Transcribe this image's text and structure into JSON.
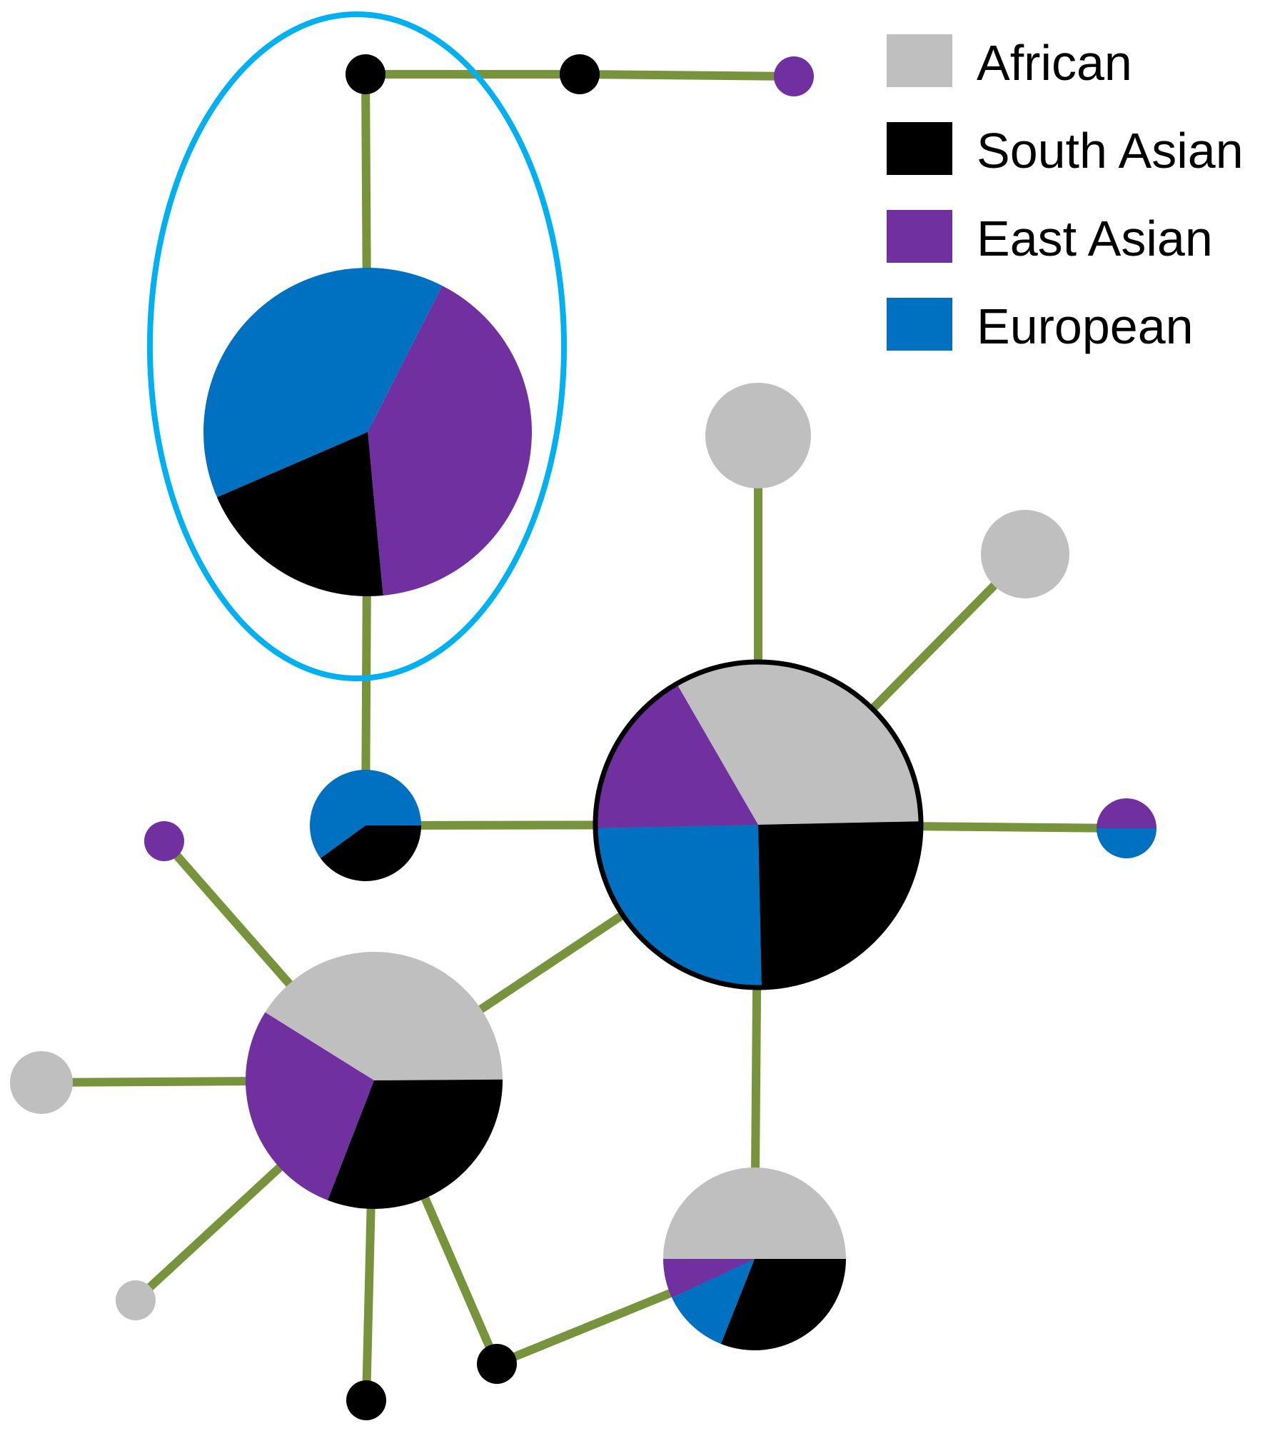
{
  "colors": {
    "African": "#bfbfbf",
    "South Asian": "#000000",
    "East Asian": "#7030a0",
    "European": "#0070c0",
    "edge": "#77933c",
    "highlight_ring": "#00b0f0"
  },
  "legend": [
    {
      "label": "African",
      "color_key": "African"
    },
    {
      "label": "South Asian",
      "color_key": "South Asian"
    },
    {
      "label": "East Asian",
      "color_key": "East Asian"
    },
    {
      "label": "European",
      "color_key": "European"
    }
  ],
  "highlighted_node": "hub_A",
  "nodes": [
    {
      "id": "top_1",
      "composition": {
        "South Asian": 1
      }
    },
    {
      "id": "top_2",
      "composition": {
        "South Asian": 1
      }
    },
    {
      "id": "top_3",
      "composition": {
        "East Asian": 1
      }
    },
    {
      "id": "hub_A",
      "composition": {
        "East Asian": 0.41,
        "South Asian": 0.2,
        "European": 0.39
      }
    },
    {
      "id": "node_B",
      "composition": {
        "European": 0.6,
        "South Asian": 0.4
      }
    },
    {
      "id": "hub_C",
      "composition": {
        "African": 0.33,
        "South Asian": 0.25,
        "European": 0.25,
        "East Asian": 0.17
      },
      "outlined": true
    },
    {
      "id": "leaf_C1",
      "composition": {
        "African": 1
      }
    },
    {
      "id": "leaf_C2",
      "composition": {
        "African": 1
      }
    },
    {
      "id": "leaf_C3",
      "composition": {
        "East Asian": 0.5,
        "European": 0.5
      }
    },
    {
      "id": "hub_D",
      "composition": {
        "African": 0.41,
        "South Asian": 0.31,
        "East Asian": 0.28
      }
    },
    {
      "id": "leaf_D1",
      "composition": {
        "East Asian": 1
      }
    },
    {
      "id": "leaf_D2",
      "composition": {
        "African": 1
      }
    },
    {
      "id": "leaf_D3",
      "composition": {
        "African": 1
      }
    },
    {
      "id": "leaf_D4",
      "composition": {
        "South Asian": 1
      }
    },
    {
      "id": "leaf_D5",
      "composition": {
        "South Asian": 1
      }
    },
    {
      "id": "node_E",
      "composition": {
        "African": 0.5,
        "South Asian": 0.31,
        "European": 0.12,
        "East Asian": 0.07
      }
    }
  ],
  "edges": [
    [
      "top_1",
      "top_2"
    ],
    [
      "top_2",
      "top_3"
    ],
    [
      "top_1",
      "hub_A"
    ],
    [
      "hub_A",
      "node_B"
    ],
    [
      "node_B",
      "hub_C"
    ],
    [
      "hub_C",
      "leaf_C1"
    ],
    [
      "hub_C",
      "leaf_C2"
    ],
    [
      "hub_C",
      "leaf_C3"
    ],
    [
      "hub_C",
      "hub_D"
    ],
    [
      "hub_C",
      "node_E"
    ],
    [
      "hub_D",
      "leaf_D1"
    ],
    [
      "hub_D",
      "leaf_D2"
    ],
    [
      "hub_D",
      "leaf_D3"
    ],
    [
      "hub_D",
      "leaf_D4"
    ],
    [
      "hub_D",
      "leaf_D5"
    ],
    [
      "leaf_D5",
      "node_E"
    ]
  ]
}
